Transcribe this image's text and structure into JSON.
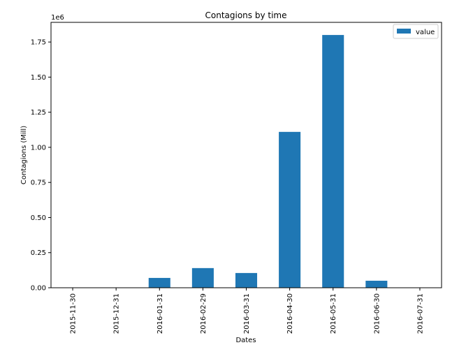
{
  "chart_data": {
    "type": "bar",
    "title": "Contagions by time",
    "xlabel": "Dates",
    "ylabel": "Contagions (Mill)",
    "y_offset_label": "1e6",
    "categories": [
      "2015-11-30",
      "2015-12-31",
      "2016-01-31",
      "2016-02-29",
      "2016-03-31",
      "2016-04-30",
      "2016-05-31",
      "2016-06-30",
      "2016-07-31"
    ],
    "series": [
      {
        "name": "value",
        "color": "#1f77b4",
        "values": [
          0,
          0,
          70000,
          140000,
          105000,
          1110000,
          1800000,
          50000,
          0
        ]
      }
    ],
    "ylim": [
      0,
      1890000
    ],
    "yticks": [
      0,
      250000,
      500000,
      750000,
      1000000,
      1250000,
      1500000,
      1750000
    ],
    "ytick_labels": [
      "0.00",
      "0.25",
      "0.50",
      "0.75",
      "1.00",
      "1.25",
      "1.50",
      "1.75"
    ],
    "grid": false,
    "legend_position": "top-right"
  }
}
